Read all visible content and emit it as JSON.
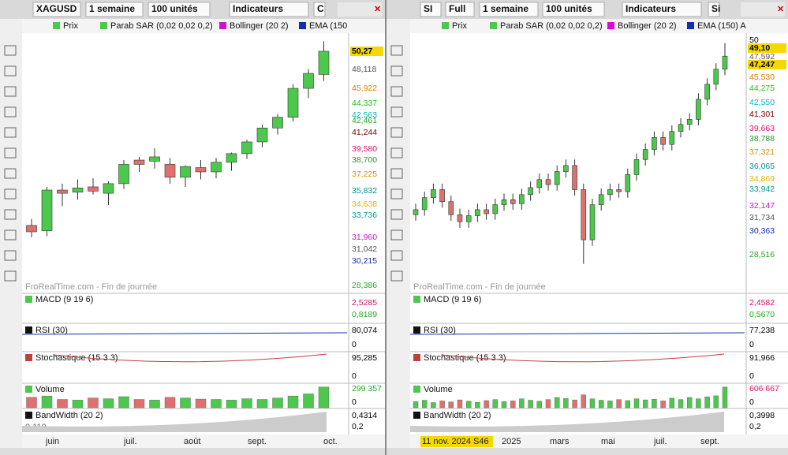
{
  "windows": [
    {
      "toolbar": [
        "XAGUSD",
        "1 semaine",
        "100 unités",
        "Indicateurs",
        "C"
      ],
      "legend": [
        "Prix",
        "Parab SAR (0,02 0,02 0,2)",
        "Bollinger (20 2)",
        "EMA (150"
      ],
      "watermark": "FroRealTime.com - Fin de journée",
      "price_tags": [
        {
          "label": "50,27",
          "color": "#000",
          "background": "#f5d800"
        },
        {
          "label": "48,118",
          "color": "#555"
        },
        {
          "label": "45,922",
          "color": "#e07b00"
        },
        {
          "label": "44,337",
          "color": "#1cc41c"
        },
        {
          "label": "42,563",
          "color": "#00b8c8"
        },
        {
          "label": "42,461",
          "color": "#22aa22"
        },
        {
          "label": "41,244",
          "color": "#7a0000"
        },
        {
          "label": "39,580",
          "color": "#e0106a"
        },
        {
          "label": "38,700",
          "color": "#229922"
        },
        {
          "label": "37,225",
          "color": "#e09000"
        },
        {
          "label": "35,832",
          "color": "#008fa0"
        },
        {
          "label": "34,638",
          "color": "#e0b800"
        },
        {
          "label": "33,736",
          "color": "#00a0a0"
        },
        {
          "label": "31,960",
          "color": "#d010d0"
        },
        {
          "label": "31,042",
          "color": "#555"
        },
        {
          "label": "30,215",
          "color": "#1030b0"
        },
        {
          "label": "28,386",
          "color": "#22aa22"
        }
      ],
      "candles": {
        "up_color": "#4cc94c",
        "down_color": "#e07070",
        "ylim": [
          27.8,
          51.74
        ],
        "open": [
          34.0,
          33.5,
          37.3,
          37.1,
          37.6,
          37.0,
          37.9,
          40.1,
          40.0,
          39.7,
          38.5,
          39.4,
          39.0,
          39.9,
          40.7,
          41.8,
          43.1,
          44.1,
          46.8,
          48.1
        ],
        "high": [
          34.6,
          37.6,
          37.9,
          38.3,
          38.4,
          38.1,
          40.1,
          40.4,
          41.2,
          40.3,
          39.6,
          40.1,
          40.3,
          40.8,
          42.0,
          43.4,
          44.4,
          47.2,
          48.6,
          51.2
        ],
        "low": [
          32.9,
          33.0,
          35.8,
          36.4,
          36.9,
          35.9,
          37.4,
          39.0,
          39.3,
          37.9,
          37.6,
          38.3,
          38.4,
          39.1,
          40.2,
          41.3,
          42.5,
          43.7,
          45.9,
          47.5
        ],
        "close": [
          33.4,
          37.3,
          37.0,
          37.5,
          37.2,
          37.9,
          39.7,
          39.7,
          40.4,
          38.5,
          39.5,
          39.0,
          39.9,
          40.7,
          41.8,
          43.1,
          44.1,
          46.8,
          48.2,
          50.27
        ]
      },
      "volume": {
        "ylim": [
          0,
          320000
        ],
        "values": [
          150000,
          170000,
          120000,
          110000,
          140000,
          130000,
          160000,
          120000,
          110000,
          150000,
          140000,
          125000,
          120000,
          110000,
          130000,
          120000,
          140000,
          170000,
          200000,
          299357
        ]
      },
      "panels": [
        {
          "title": "MACD (9 19 6)",
          "tags": [
            {
              "label": "2,5285",
              "color": "#e0106a"
            },
            {
              "label": "0,8189",
              "color": "#22aa22"
            }
          ]
        },
        {
          "title": "RSI (30)",
          "tags": [
            {
              "label": "80,074",
              "color": "#000"
            },
            {
              "label": "0",
              "color": "#000"
            }
          ]
        },
        {
          "title": "Stochastique (15 3 3)",
          "tags": [
            {
              "label": "95,285",
              "color": "#000"
            },
            {
              "label": "0",
              "color": "#000"
            }
          ]
        },
        {
          "title": "Volume",
          "tags": [
            {
              "label": "299 357",
              "color": "#22aa22"
            },
            {
              "label": "0",
              "color": "#000"
            }
          ]
        },
        {
          "title": "BandWidth (20 2)",
          "tags": [
            {
              "label": "0,4314",
              "color": "#000"
            },
            {
              "label": "0,2",
              "color": "#000"
            }
          ],
          "note": "0,119"
        }
      ],
      "x_labels": [
        "juin",
        "juil.",
        "août",
        "sept.",
        "oct."
      ]
    },
    {
      "toolbar": [
        "SI",
        "Full",
        "1 semaine",
        "100 unités",
        "Indicateurs",
        "Si"
      ],
      "legend": [
        "Prix",
        "Parab SAR (0,02 0,02 0,2)",
        "Bollinger (20 2)",
        "EMA (150) A"
      ],
      "watermark": "ProRealTime.com - Fin de journée",
      "price_tags": [
        {
          "label": "50",
          "color": "#000"
        },
        {
          "label": "49,10",
          "color": "#000",
          "background": "#f5d800"
        },
        {
          "label": "47,592",
          "color": "#555"
        },
        {
          "label": "47,247",
          "color": "#000",
          "background": "#f5d800"
        },
        {
          "label": "45,530",
          "color": "#e07b00"
        },
        {
          "label": "44,275",
          "color": "#1cc41c"
        },
        {
          "label": "42,550",
          "color": "#00b8c8"
        },
        {
          "label": "41,301",
          "color": "#7a0000"
        },
        {
          "label": "39,663",
          "color": "#e0106a"
        },
        {
          "label": "38,788",
          "color": "#229922"
        },
        {
          "label": "37,321",
          "color": "#e09000"
        },
        {
          "label": "36,065",
          "color": "#008fa0"
        },
        {
          "label": "34,869",
          "color": "#e0b800"
        },
        {
          "label": "33,942",
          "color": "#00a0a0"
        },
        {
          "label": "32,147",
          "color": "#d010d0"
        },
        {
          "label": "31,734",
          "color": "#555"
        },
        {
          "label": "30,363",
          "color": "#1030b0"
        },
        {
          "label": "28,516",
          "color": "#22aa22"
        }
      ],
      "candles": {
        "up_color": "#4cc94c",
        "down_color": "#e07070",
        "ylim": [
          24.82,
          50.36
        ],
        "open": [
          32.5,
          33.0,
          34.2,
          35.0,
          33.8,
          32.5,
          31.8,
          32.4,
          33.0,
          32.6,
          33.5,
          34.0,
          33.6,
          34.5,
          35.2,
          36.0,
          35.5,
          36.8,
          37.4,
          35.0,
          30.0,
          33.5,
          34.5,
          35.0,
          34.8,
          36.5,
          38.0,
          39.0,
          40.2,
          39.5,
          40.8,
          41.5,
          42.0,
          44.0,
          45.5,
          47.0
        ],
        "high": [
          33.6,
          34.8,
          35.6,
          35.6,
          34.4,
          33.1,
          33.0,
          33.6,
          33.6,
          34.1,
          34.6,
          34.6,
          35.1,
          35.8,
          36.6,
          36.6,
          37.4,
          38.0,
          38.0,
          35.6,
          34.1,
          35.1,
          35.6,
          35.6,
          37.1,
          38.6,
          39.6,
          40.8,
          40.8,
          41.4,
          42.1,
          42.6,
          44.6,
          46.1,
          47.6,
          49.6
        ],
        "low": [
          31.9,
          32.4,
          33.6,
          33.2,
          31.9,
          31.2,
          31.2,
          31.8,
          32.0,
          32.0,
          32.9,
          33.0,
          33.0,
          33.9,
          34.6,
          34.9,
          34.9,
          36.2,
          34.4,
          27.6,
          29.4,
          32.9,
          33.9,
          34.2,
          34.2,
          35.9,
          37.4,
          38.4,
          38.9,
          38.9,
          40.2,
          40.9,
          41.4,
          43.4,
          44.9,
          46.4
        ],
        "close": [
          33.0,
          34.2,
          35.0,
          33.8,
          32.5,
          31.8,
          32.4,
          33.0,
          32.6,
          33.5,
          34.0,
          33.6,
          34.5,
          35.2,
          36.0,
          35.5,
          36.8,
          37.4,
          35.0,
          30.0,
          33.5,
          34.5,
          35.0,
          34.8,
          36.5,
          38.0,
          39.0,
          40.2,
          39.5,
          40.8,
          41.5,
          42.0,
          44.0,
          45.5,
          47.0,
          48.3
        ]
      },
      "volume": {
        "ylim": [
          0,
          650000
        ],
        "values": [
          180000,
          220000,
          150000,
          200000,
          170000,
          230000,
          190000,
          160000,
          210000,
          240000,
          180000,
          200000,
          260000,
          220000,
          190000,
          240000,
          300000,
          270000,
          230000,
          380000,
          260000,
          220000,
          200000,
          240000,
          210000,
          260000,
          230000,
          250000,
          200000,
          280000,
          240000,
          300000,
          260000,
          320000,
          350000,
          606667
        ]
      },
      "panels": [
        {
          "title": "MACD (9 19 6)",
          "tags": [
            {
              "label": "2,4582",
              "color": "#e0106a"
            },
            {
              "label": "0,5670",
              "color": "#22aa22"
            }
          ]
        },
        {
          "title": "RSI (30)",
          "tags": [
            {
              "label": "77,238",
              "color": "#000"
            },
            {
              "label": "0",
              "color": "#000"
            }
          ]
        },
        {
          "title": "Stochastique (15 3 3)",
          "tags": [
            {
              "label": "91,966",
              "color": "#000"
            },
            {
              "label": "0",
              "color": "#000"
            }
          ]
        },
        {
          "title": "Volume",
          "tags": [
            {
              "label": "606 667",
              "color": "#e0106a"
            },
            {
              "label": "0",
              "color": "#000"
            }
          ]
        },
        {
          "title": "BandWidth (20 2)",
          "tags": [
            {
              "label": "0,3998",
              "color": "#000"
            },
            {
              "label": "0,2",
              "color": "#000"
            }
          ]
        }
      ],
      "x_labels": [
        {
          "label": "11 nov. 2024 S46",
          "highlight": "#f5d800"
        },
        "2025",
        "mars",
        "mai",
        "juil.",
        "sept."
      ]
    }
  ]
}
